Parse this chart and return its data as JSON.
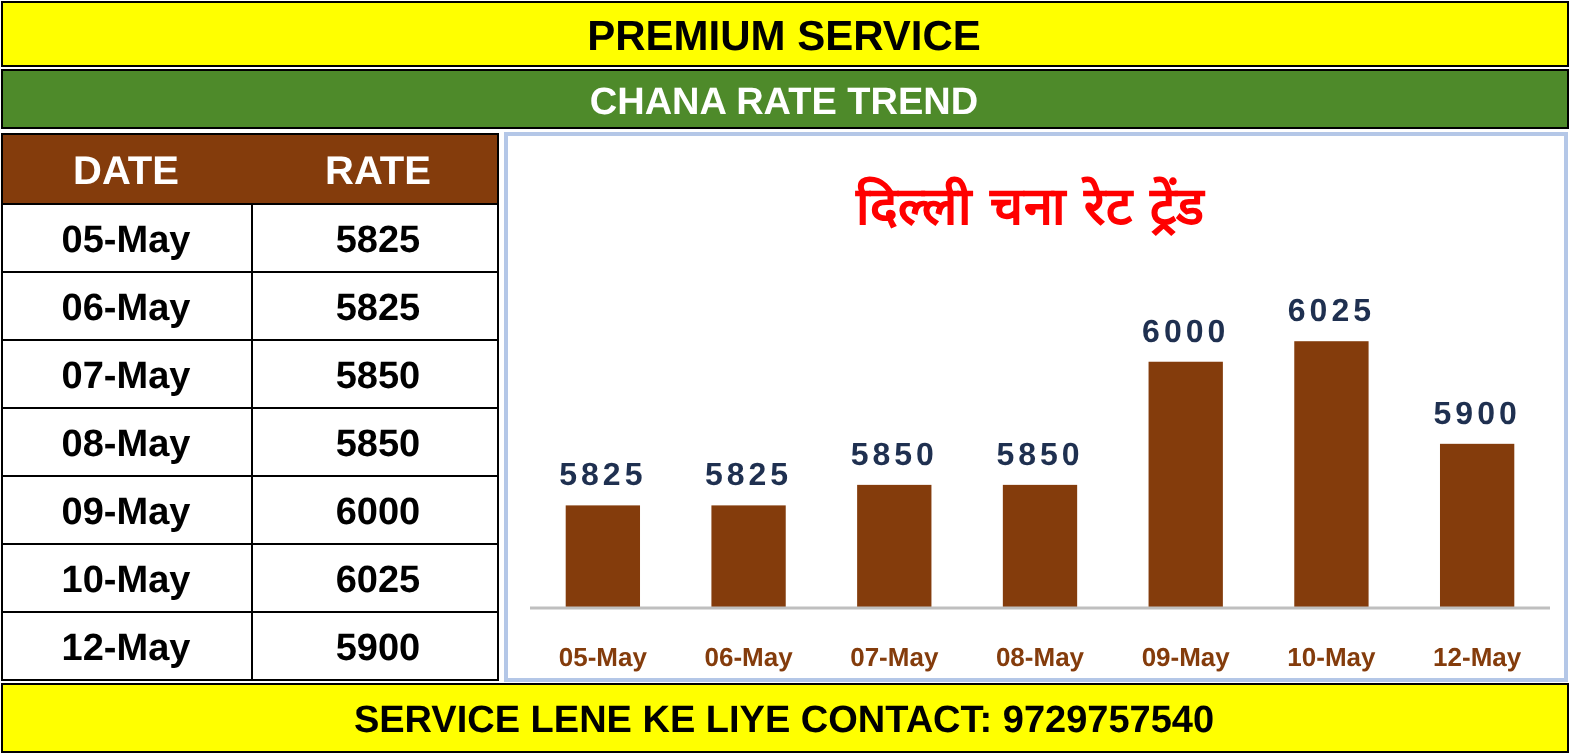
{
  "chart_data": {
    "type": "bar",
    "title": "दिल्ली चना रेट ट्रेंड",
    "subtitle": "CHANA RATE TREND",
    "annotations": [
      "PREMIUM SERVICE",
      "DATE",
      "RATE",
      "SERVICE LENE KE LIYE CONTACT: 9729757540",
      "5825",
      "5825",
      "5850",
      "5850",
      "6000",
      "6025",
      "5900"
    ],
    "categories": [
      "05-May",
      "06-May",
      "07-May",
      "08-May",
      "09-May",
      "10-May",
      "12-May"
    ],
    "values": [
      5825,
      5825,
      5850,
      5850,
      6000,
      6025,
      5900
    ],
    "value_labels": [
      "5825",
      "5825",
      "5850",
      "5850",
      "6000",
      "6025",
      "5900"
    ],
    "color": "#843c0c",
    "ylim": [
      5700,
      6275
    ],
    "grid": false,
    "legend": false
  }
}
